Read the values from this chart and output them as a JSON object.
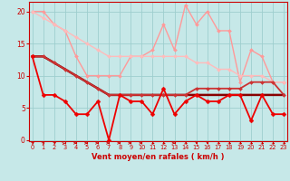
{
  "bg_color": "#c6e8e8",
  "grid_color": "#9ecece",
  "xlabel": "Vent moyen/en rafales ( km/h )",
  "xlabel_color": "#cc0000",
  "tick_color": "#cc0000",
  "xlim": [
    -0.3,
    23.3
  ],
  "ylim": [
    -0.2,
    21.5
  ],
  "yticks": [
    0,
    5,
    10,
    15,
    20
  ],
  "xticks": [
    0,
    1,
    2,
    3,
    4,
    5,
    6,
    7,
    8,
    9,
    10,
    11,
    12,
    13,
    14,
    15,
    16,
    17,
    18,
    19,
    20,
    21,
    22,
    23
  ],
  "lines": [
    {
      "x": [
        0,
        1,
        2,
        3,
        4,
        5,
        6,
        7,
        8,
        9,
        10,
        11,
        12,
        13,
        14,
        15,
        16,
        17,
        18,
        19,
        20,
        21,
        22,
        23
      ],
      "y": [
        20,
        20,
        18,
        17,
        13,
        10,
        10,
        10,
        10,
        13,
        13,
        14,
        18,
        14,
        21,
        18,
        20,
        17,
        17,
        9,
        14,
        13,
        9,
        9
      ],
      "color": "#ff9999",
      "lw": 1.0,
      "marker": "D",
      "ms": 2.0
    },
    {
      "x": [
        0,
        1,
        2,
        3,
        4,
        5,
        6,
        7,
        8,
        9,
        10,
        11,
        12,
        13,
        14,
        15,
        16,
        17,
        18,
        19,
        20,
        21,
        22,
        23
      ],
      "y": [
        20,
        19,
        18,
        17,
        16,
        15,
        14,
        13,
        13,
        13,
        13,
        13,
        13,
        13,
        13,
        12,
        12,
        11,
        11,
        10,
        10,
        10,
        9,
        9
      ],
      "color": "#ffbbbb",
      "lw": 1.0,
      "marker": "D",
      "ms": 2.0
    },
    {
      "x": [
        0,
        1,
        2,
        3,
        4,
        5,
        6,
        7,
        8,
        9,
        10,
        11,
        12,
        13,
        14,
        15,
        16,
        17,
        18,
        19,
        20,
        21,
        22,
        23
      ],
      "y": [
        13,
        13,
        12,
        11,
        10,
        9,
        8,
        7,
        7,
        7,
        7,
        7,
        7,
        7,
        7,
        7,
        7,
        7,
        7,
        7,
        7,
        7,
        7,
        7
      ],
      "color": "#880000",
      "lw": 1.8,
      "marker": null,
      "ms": 0
    },
    {
      "x": [
        0,
        1,
        2,
        3,
        4,
        5,
        6,
        7,
        8,
        9,
        10,
        11,
        12,
        13,
        14,
        15,
        16,
        17,
        18,
        19,
        20,
        21,
        22,
        23
      ],
      "y": [
        13,
        13,
        12,
        11,
        10,
        9,
        8,
        7,
        7,
        7,
        7,
        7,
        7,
        7,
        7,
        8,
        8,
        8,
        8,
        8,
        9,
        9,
        9,
        7
      ],
      "color": "#cc3333",
      "lw": 1.3,
      "marker": "D",
      "ms": 2.0
    },
    {
      "x": [
        0,
        1,
        2,
        3,
        4,
        5,
        6,
        7,
        8,
        9,
        10,
        11,
        12,
        13,
        14,
        15,
        16,
        17,
        18,
        19,
        20,
        21,
        22,
        23
      ],
      "y": [
        13,
        7,
        7,
        6,
        4,
        4,
        6,
        0,
        7,
        6,
        6,
        4,
        8,
        4,
        6,
        7,
        6,
        6,
        7,
        7,
        3,
        7,
        4,
        4
      ],
      "color": "#ee0000",
      "lw": 1.3,
      "marker": "D",
      "ms": 2.5
    }
  ],
  "wind_dirs": [
    225,
    210,
    225,
    240,
    270,
    270,
    270,
    270,
    270,
    270,
    270,
    315,
    315,
    270,
    315,
    360,
    0,
    315,
    315,
    315,
    315,
    315,
    315,
    315
  ],
  "arrow_color": "#cc0000",
  "spine_color": "#cc0000"
}
